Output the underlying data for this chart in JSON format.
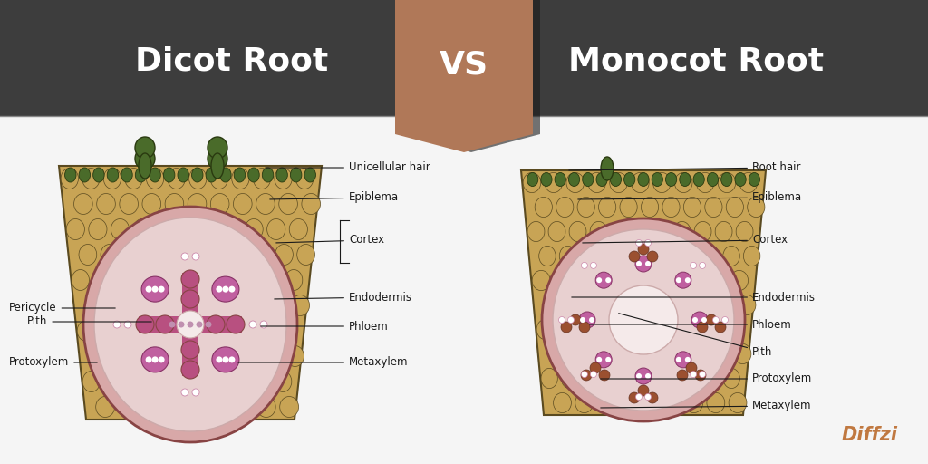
{
  "title_left": "Dicot Root",
  "title_right": "Monocot Root",
  "vs_text": "VS",
  "bg_header": "#3d3d3d",
  "bg_body": "#f5f5f5",
  "vs_color": "#b07858",
  "vs_shadow": "#252525",
  "title_color": "#ffffff",
  "label_color": "#1a1a1a",
  "label_fontsize": 8.5,
  "title_fontsize": 26,
  "diffzi_color": "#c07840",
  "cortex_color": "#c8a455",
  "cortex_edge": "#5a4a20",
  "hair_color": "#4a6b2a",
  "hair_edge": "#2a3a10",
  "endo_fill": "#d8a8a8",
  "endo_edge": "#884444",
  "vasc_fill": "#e8d0d0",
  "phloem_color": "#c060a0",
  "phloem_edge": "#883366",
  "xylem_color": "#b85080",
  "brown_color": "#9b5030",
  "white_dot": "#ffffff",
  "cell_edge": "#7a6020"
}
